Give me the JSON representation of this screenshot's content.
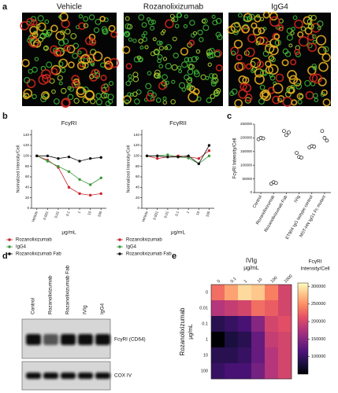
{
  "panel_labels": [
    "a",
    "b",
    "c",
    "d",
    "e"
  ],
  "panel_a": {
    "image_labels": [
      "Vehicle",
      "Rozanolixizumab",
      "IgG4"
    ]
  },
  "chart_data": [
    {
      "type": "line",
      "title": "FcγRI",
      "ylabel": "Normalized Intensity/Cell",
      "xlabel": "µg/mL",
      "categories": [
        "Vehicle",
        "0.001",
        "0.01",
        "0.1",
        "1",
        "10",
        "100"
      ],
      "ylim": [
        0,
        150
      ],
      "yticks": [
        0,
        20,
        40,
        60,
        80,
        100,
        120,
        140
      ],
      "series": [
        {
          "name": "Rozanolixizumab",
          "color": "#c8262c",
          "values": [
            100,
            92,
            78,
            40,
            28,
            25,
            28
          ]
        },
        {
          "name": "IgG4",
          "color": "#3a9a3a",
          "values": [
            100,
            90,
            80,
            70,
            55,
            45,
            58
          ]
        },
        {
          "name": "Rozanolixizumab Fab",
          "color": "#111111",
          "values": [
            100,
            100,
            95,
            98,
            90,
            95,
            97
          ]
        }
      ]
    },
    {
      "type": "line",
      "title": "FcγRII",
      "ylabel": "Normalized Intensity/Cell",
      "xlabel": "µg/mL",
      "categories": [
        "Vehicle",
        "0.001",
        "0.01",
        "0.1",
        "1",
        "10",
        "100"
      ],
      "ylim": [
        0,
        150
      ],
      "yticks": [
        0,
        20,
        40,
        60,
        80,
        100,
        120,
        140
      ],
      "series": [
        {
          "name": "Rozanolixizumab",
          "color": "#c8262c",
          "values": [
            100,
            95,
            98,
            100,
            98,
            95,
            110
          ]
        },
        {
          "name": "IgG4",
          "color": "#3a9a3a",
          "values": [
            100,
            100,
            102,
            98,
            96,
            85,
            100
          ]
        },
        {
          "name": "Rozanolixizumab Fab",
          "color": "#111111",
          "values": [
            100,
            100,
            98,
            98,
            100,
            85,
            120
          ]
        }
      ]
    },
    {
      "type": "dot",
      "ylabel": "FcγRI Intensity/Cell",
      "categories": [
        "Control",
        "Rozanolixizumab",
        "Rozanolixizumab Fab",
        "IVIg",
        "ET904 IgG isotype control",
        "MST-HN IgG1 Fc mutant"
      ],
      "values": [
        [
          195000,
          200000,
          198000
        ],
        [
          32000,
          38000,
          35000
        ],
        [
          225000,
          210000,
          220000
        ],
        [
          145000,
          130000,
          128000
        ],
        [
          165000,
          170000,
          168000
        ],
        [
          225000,
          200000,
          190000
        ]
      ],
      "ylim": [
        0,
        250000
      ],
      "yticks": [
        0,
        50000,
        100000,
        150000,
        200000,
        250000
      ]
    },
    {
      "type": "heatmap",
      "xlabel": "IVIg",
      "xunit": "µg/mL",
      "ylabel": "Rozanolixizumab",
      "yunit": "µg/mL",
      "columns": [
        "0",
        "0.1",
        "1",
        "10",
        "100",
        "1000"
      ],
      "rows": [
        "0",
        "0.01",
        "0.1",
        "1",
        "10",
        "100"
      ],
      "values": [
        [
          230000,
          260000,
          290000,
          280000,
          240000,
          200000
        ],
        [
          180000,
          190000,
          200000,
          230000,
          220000,
          200000
        ],
        [
          90000,
          100000,
          110000,
          150000,
          200000,
          210000
        ],
        [
          50000,
          80000,
          90000,
          130000,
          190000,
          200000
        ],
        [
          90000,
          90000,
          100000,
          130000,
          180000,
          200000
        ],
        [
          100000,
          110000,
          110000,
          140000,
          180000,
          200000
        ]
      ],
      "colorbar_title": [
        "FcγRI",
        "Intensity/Cell"
      ],
      "clim": [
        50000,
        310000
      ],
      "cticks": [
        100000,
        150000,
        200000,
        250000,
        300000
      ]
    }
  ],
  "panel_d": {
    "lanes": [
      "Control",
      "Rozanolixizumab",
      "Rozanolixizumab Fab",
      "IVIg",
      "IgG4"
    ],
    "bands": [
      "FcγRI (CD64)",
      "COX IV"
    ]
  }
}
